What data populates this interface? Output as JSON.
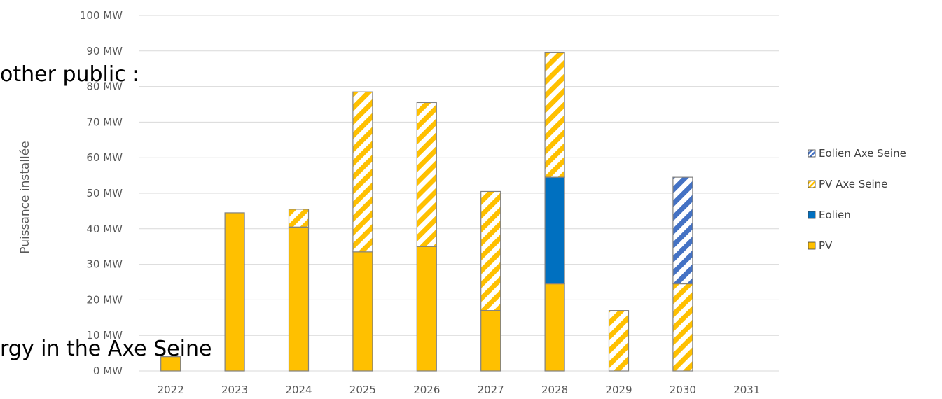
{
  "overlay_text": {
    "top": "other public :",
    "bottom": "rgy in the Axe Seine"
  },
  "colors": {
    "pv": "#ffc000",
    "eolien": "#0070c0",
    "eolien_stripe": "#4472c4",
    "bar_edge": "#808080",
    "grid": "#d9d9d9",
    "axis_text": "#595959"
  },
  "chart_data": {
    "type": "bar",
    "stacked": true,
    "ylabel": "Puissance installée",
    "ylim": [
      0,
      100
    ],
    "yticks": [
      {
        "value": 0,
        "label": "0 MW"
      },
      {
        "value": 10,
        "label": "10 MW"
      },
      {
        "value": 20,
        "label": "20 MW"
      },
      {
        "value": 30,
        "label": "30 MW"
      },
      {
        "value": 40,
        "label": "40 MW"
      },
      {
        "value": 50,
        "label": "50 MW"
      },
      {
        "value": 60,
        "label": "60 MW"
      },
      {
        "value": 70,
        "label": "70 MW"
      },
      {
        "value": 80,
        "label": "80 MW"
      },
      {
        "value": 90,
        "label": "90 MW"
      },
      {
        "value": 100,
        "label": "100 MW"
      }
    ],
    "categories": [
      "2022",
      "2023",
      "2024",
      "2025",
      "2026",
      "2027",
      "2028",
      "2029",
      "2030",
      "2031"
    ],
    "series": [
      {
        "name": "PV",
        "pattern": "solid",
        "color": "#ffc000",
        "values": [
          4,
          44.5,
          40.5,
          33.5,
          35,
          17,
          24.5,
          0,
          0,
          0
        ]
      },
      {
        "name": "Eolien",
        "pattern": "solid",
        "color": "#0070c0",
        "values": [
          0,
          0,
          0,
          0,
          0,
          0,
          30,
          0,
          0,
          0
        ]
      },
      {
        "name": "PV Axe Seine",
        "pattern": "stripes",
        "color": "#ffc000",
        "values": [
          0,
          0,
          5,
          45,
          40.5,
          33.5,
          35,
          17,
          24.5,
          0
        ]
      },
      {
        "name": "Eolien Axe Seine",
        "pattern": "stripes",
        "color": "#4472c4",
        "values": [
          0,
          0,
          0,
          0,
          0,
          0,
          0,
          0,
          30,
          0
        ]
      }
    ],
    "legend": [
      {
        "name": "Eolien Axe Seine",
        "pattern": "stripes",
        "color": "#4472c4"
      },
      {
        "name": "PV Axe Seine",
        "pattern": "stripes",
        "color": "#ffc000"
      },
      {
        "name": "Eolien",
        "pattern": "solid",
        "color": "#0070c0"
      },
      {
        "name": "PV",
        "pattern": "solid",
        "color": "#ffc000"
      }
    ],
    "legend_position": "right",
    "grid": true
  }
}
